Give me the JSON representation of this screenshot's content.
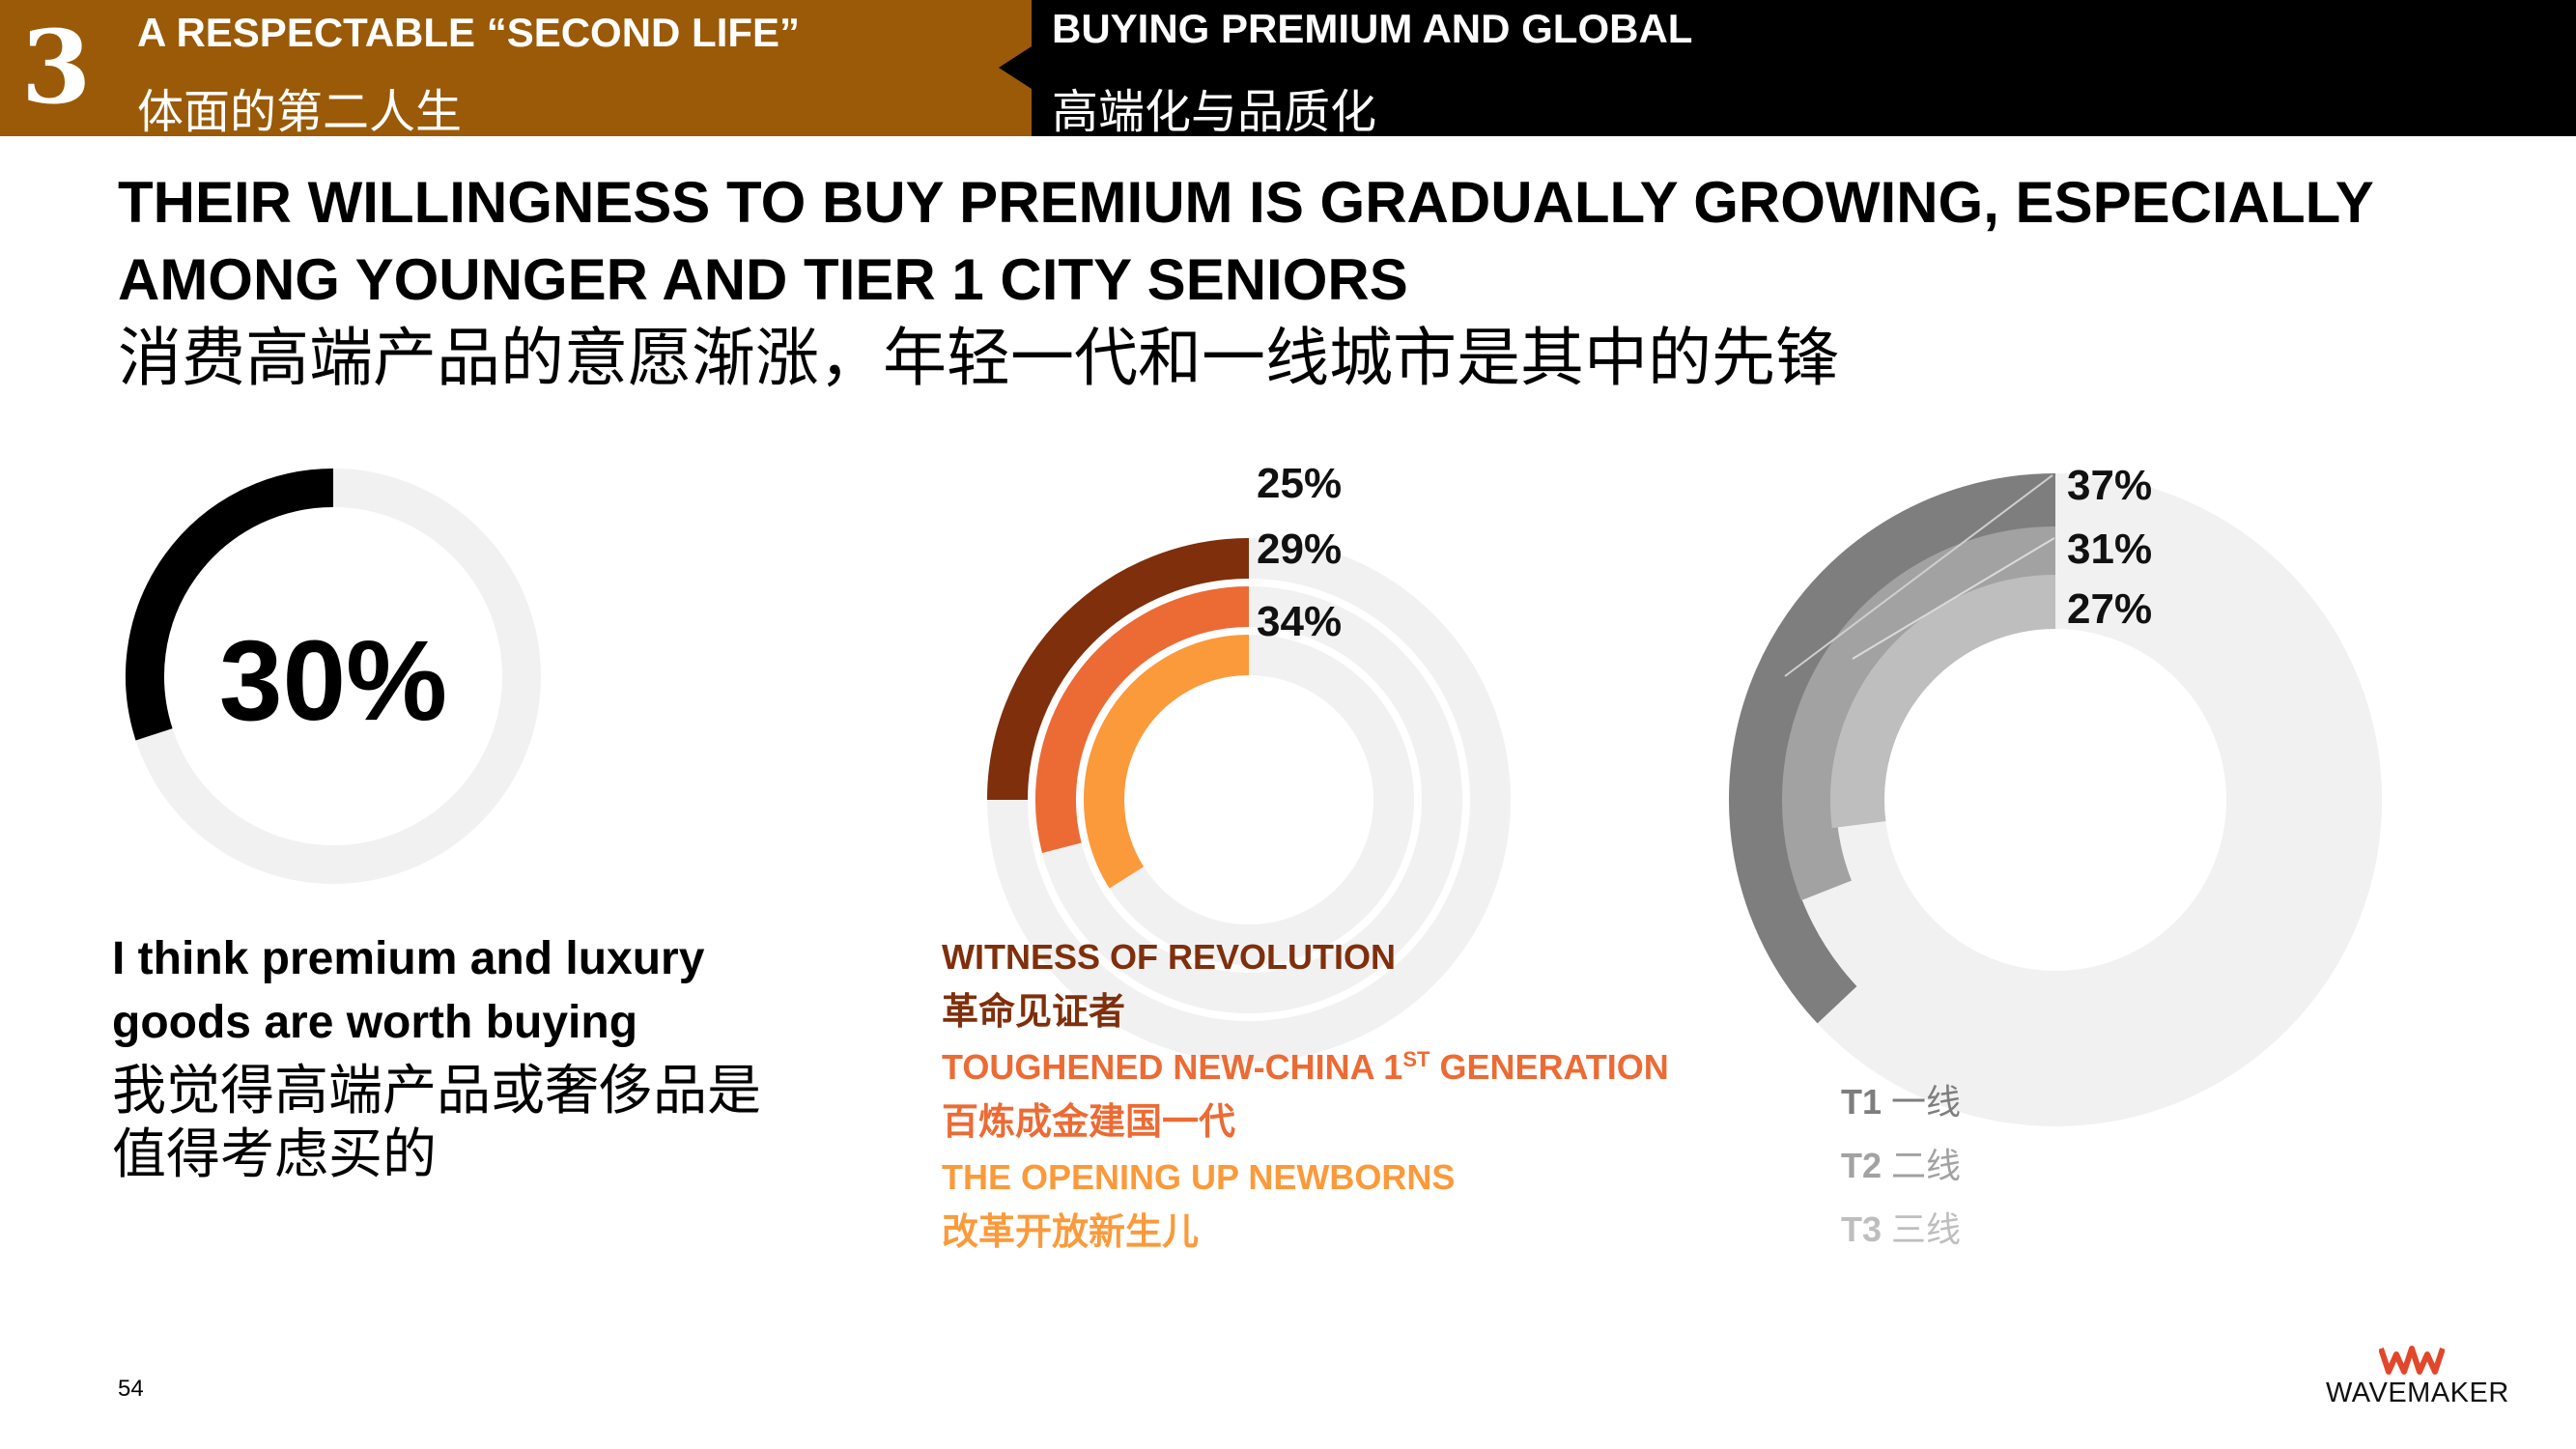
{
  "header": {
    "section_number": "3",
    "section_title_en": "A RESPECTABLE “SECOND LIFE”",
    "section_title_zh": "体面的第二人生",
    "topic_title_en": "BUYING PREMIUM AND GLOBAL",
    "topic_title_zh": "高端化与品质化",
    "colors": {
      "section_bg": "#9a5a07",
      "topic_bg": "#000000"
    }
  },
  "title": {
    "line1": "THEIR WILLINGNESS TO BUY PREMIUM IS GRADUALLY GROWING, ESPECIALLY",
    "line2": "AMONG YOUNGER AND TIER 1 CITY SENIORS",
    "zh": "消费高端产品的意愿渐涨，年轻一代和一线城市是其中的先锋"
  },
  "chart_data": [
    {
      "type": "pie",
      "variant": "donut",
      "center_label": "30%",
      "values": [
        30
      ],
      "max": 100,
      "colors": {
        "filled": "#000000",
        "track": "#f1f1f1"
      },
      "statement_en_1": "I think premium and luxury",
      "statement_en_2": "goods are worth buying",
      "statement_zh_1": "我觉得高端产品或奢侈品是",
      "statement_zh_2": "值得考虑买的"
    },
    {
      "type": "pie",
      "variant": "radial-bar",
      "series": [
        {
          "name": "WITNESS OF REVOLUTION",
          "name_zh": "革命见证者",
          "value": 25,
          "label": "25%",
          "color": "#7f2f0c"
        },
        {
          "name": "TOUGHENED NEW-CHINA 1",
          "name_sup": "ST",
          "name_suffix": " GENERATION",
          "name_zh": "百炼成金建国一代",
          "value": 29,
          "label": "29%",
          "color": "#ec6b34"
        },
        {
          "name": "THE OPENING UP NEWBORNS",
          "name_zh": "改革开放新生儿",
          "value": 34,
          "label": "34%",
          "color": "#fb9a3a"
        }
      ],
      "track_color": "#f1f1f1"
    },
    {
      "type": "pie",
      "variant": "radial-bar",
      "series": [
        {
          "name": "T1",
          "name_zh": "一线",
          "value": 37,
          "label": "37%",
          "color": "#7e7e7e"
        },
        {
          "name": "T2",
          "name_zh": "二线",
          "value": 31,
          "label": "31%",
          "color": "#a2a2a2"
        },
        {
          "name": "T3",
          "name_zh": "三线",
          "value": 27,
          "label": "27%",
          "color": "#bebebe"
        }
      ],
      "track_color": "#f1f1f1"
    }
  ],
  "footer": {
    "page_number": "54",
    "logo_mark": "WM",
    "logo_text": "WAVEMAKER",
    "logo_color": "#e2472b"
  }
}
